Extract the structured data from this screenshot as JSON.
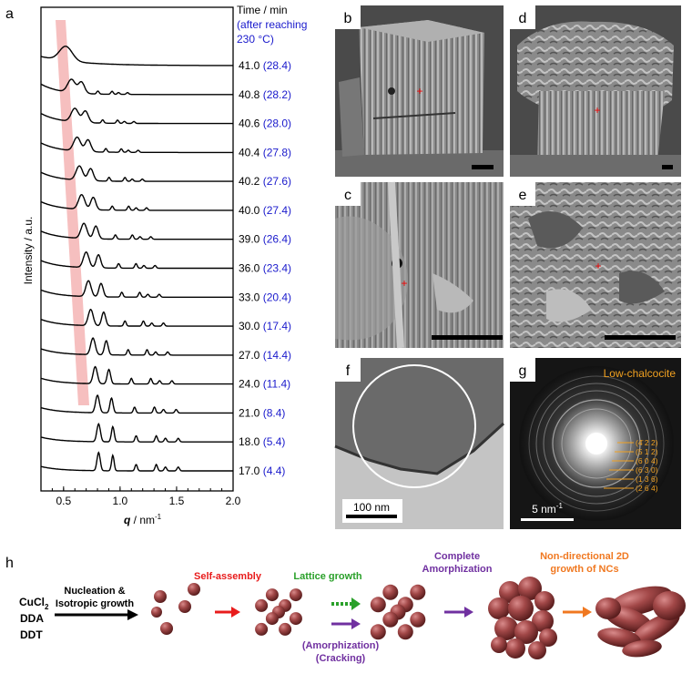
{
  "panel_a": {
    "letter": "a",
    "time_header_line1": "Time / min",
    "time_header_line2": "(after reaching",
    "time_header_line3": "230 °C)",
    "y_axis_label": "Intensity / a.u.",
    "x_axis_label_q": "q",
    "x_axis_label_unit": " / nm",
    "x_axis_label_exp": "-1",
    "colors": {
      "curve": "#000000",
      "accent": "#1a1acc",
      "band": "#f4b4b4"
    }
  },
  "chart_data": {
    "type": "line",
    "xlim": [
      0.3,
      2.0
    ],
    "x_ticks": [
      "0.5",
      "1.0",
      "1.5",
      "2.0"
    ],
    "x_tick_values": [
      0.5,
      1.0,
      1.5,
      2.0
    ],
    "series": [
      {
        "time": "41.0",
        "after": "(28.4)",
        "peak_q": 0.5
      },
      {
        "time": "40.8",
        "after": "(28.2)",
        "peak_q": 0.57
      },
      {
        "time": "40.6",
        "after": "(28.0)",
        "peak_q": 0.6
      },
      {
        "time": "40.4",
        "after": "(27.8)",
        "peak_q": 0.62
      },
      {
        "time": "40.2",
        "after": "(27.6)",
        "peak_q": 0.64
      },
      {
        "time": "40.0",
        "after": "(27.4)",
        "peak_q": 0.66
      },
      {
        "time": "39.0",
        "after": "(26.4)",
        "peak_q": 0.68
      },
      {
        "time": "36.0",
        "after": "(23.4)",
        "peak_q": 0.7
      },
      {
        "time": "33.0",
        "after": "(20.4)",
        "peak_q": 0.72
      },
      {
        "time": "30.0",
        "after": "(17.4)",
        "peak_q": 0.74
      },
      {
        "time": "27.0",
        "after": "(14.4)",
        "peak_q": 0.76
      },
      {
        "time": "24.0",
        "after": "(11.4)",
        "peak_q": 0.78
      },
      {
        "time": "21.0",
        "after": "(8.4)",
        "peak_q": 0.8
      },
      {
        "time": "18.0",
        "after": "(5.4)",
        "peak_q": 0.81
      },
      {
        "time": "17.0",
        "after": "(4.4)",
        "peak_q": 0.81
      }
    ]
  },
  "panel_b": {
    "letter": "b"
  },
  "panel_c": {
    "letter": "c"
  },
  "panel_d": {
    "letter": "d"
  },
  "panel_e": {
    "letter": "e"
  },
  "panel_f": {
    "letter": "f",
    "scale_bar": "100 nm"
  },
  "panel_g": {
    "letter": "g",
    "title": "Low-chalcocite",
    "scale_bar_text": "5 nm",
    "scale_bar_exp": "-1",
    "planes": [
      "(4̄ 2 2)",
      "(5 1 2)",
      "(6 0 4)",
      "(6 3 0)",
      "(1 3 6)",
      "(2 6 4)"
    ],
    "title_color": "#f0a020"
  },
  "panel_h": {
    "letter": "h",
    "reagents": [
      "CuCl",
      "DDA",
      "DDT"
    ],
    "reagent_sub": "2",
    "step1_line1": "Nucleation &",
    "step1_line2": "Isotropic growth",
    "self_assembly": "Self-assembly",
    "lattice_growth": "Lattice growth",
    "amorph_line1": "(Amorphization)",
    "amorph_line2": "(Cracking)",
    "complete_line1": "Complete",
    "complete_line2": "Amorphization",
    "nondir_line1": "Non-directional 2D",
    "nondir_line2": "growth of NCs",
    "colors": {
      "red": "#e81c1c",
      "green": "#2aa02a",
      "purple": "#7030a0",
      "orange": "#f07820",
      "sphere": "#9a3a3a"
    }
  }
}
